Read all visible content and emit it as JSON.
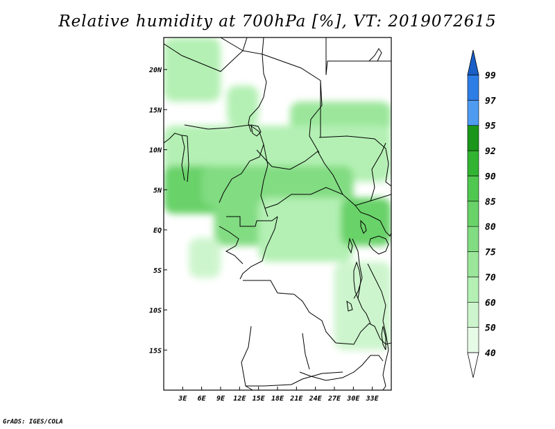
{
  "title": "Relative humidity at 700hPa [%], VT: 2019072615",
  "footer": "GrADS: IGES/COLA",
  "map": {
    "lon_range": [
      0,
      36
    ],
    "lat_range": [
      -20,
      24
    ],
    "lat_labels": [
      "20N",
      "15N",
      "10N",
      "5N",
      "EQ",
      "5S",
      "10S",
      "15S"
    ],
    "lat_values": [
      20,
      15,
      10,
      5,
      0,
      -5,
      -10,
      -15
    ],
    "lon_labels": [
      "3E",
      "6E",
      "9E",
      "12E",
      "15E",
      "18E",
      "21E",
      "24E",
      "27E",
      "30E",
      "33E"
    ],
    "lon_values": [
      3,
      6,
      9,
      12,
      15,
      18,
      21,
      24,
      27,
      30,
      33
    ]
  },
  "colorbar": {
    "levels": [
      "40",
      "50",
      "60",
      "70",
      "75",
      "80",
      "85",
      "90",
      "92",
      "95",
      "97",
      "99"
    ],
    "colors": [
      "#ffffff",
      "#e6fae6",
      "#cdf5cd",
      "#b4f0b4",
      "#9be69b",
      "#82dc82",
      "#69d269",
      "#50c850",
      "#32b432",
      "#1a961a",
      "#4f9bf0",
      "#2d7de6",
      "#1a5fc8"
    ]
  },
  "chart_data": {
    "type": "heatmap",
    "title": "Relative humidity at 700hPa [%], VT: 2019072615",
    "variable": "Relative humidity at 700hPa",
    "unit": "%",
    "valid_time": "2019072615",
    "contour_levels": [
      40,
      50,
      60,
      70,
      75,
      80,
      85,
      90,
      92,
      95,
      97,
      99
    ],
    "xlim": [
      0,
      36
    ],
    "ylim": [
      -20,
      24
    ],
    "regions": [
      {
        "lon": [
          0,
          9
        ],
        "lat": [
          16,
          24
        ],
        "rh": 60
      },
      {
        "lon": [
          10,
          15
        ],
        "lat": [
          13,
          18
        ],
        "rh": 60
      },
      {
        "lon": [
          20,
          36
        ],
        "lat": [
          12,
          16
        ],
        "rh": 70
      },
      {
        "lon": [
          0,
          36
        ],
        "lat": [
          6,
          13
        ],
        "rh": 60
      },
      {
        "lon": [
          0,
          10
        ],
        "lat": [
          2,
          8
        ],
        "rh": 80
      },
      {
        "lon": [
          6,
          30
        ],
        "lat": [
          3,
          8
        ],
        "rh": 75
      },
      {
        "lon": [
          8,
          16
        ],
        "lat": [
          -2,
          4
        ],
        "rh": 75
      },
      {
        "lon": [
          15,
          30
        ],
        "lat": [
          -4,
          4
        ],
        "rh": 60
      },
      {
        "lon": [
          28,
          36
        ],
        "lat": [
          -2,
          4
        ],
        "rh": 80
      },
      {
        "lon": [
          27,
          36
        ],
        "lat": [
          -15,
          -4
        ],
        "rh": 50
      },
      {
        "lon": [
          4,
          9
        ],
        "lat": [
          -6,
          -1
        ],
        "rh": 50
      }
    ]
  }
}
